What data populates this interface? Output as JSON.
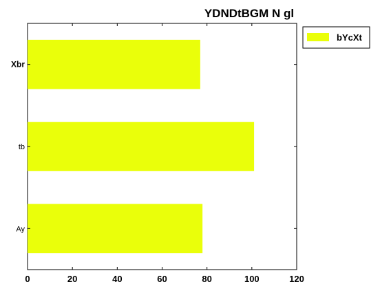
{
  "chart_data": {
    "type": "bar",
    "orientation": "horizontal",
    "title": "YDNDtBGM N gl",
    "categories": [
      "Xbr",
      "tb",
      "Ay"
    ],
    "series": [
      {
        "name": "bYcXt",
        "values": [
          77,
          101,
          78
        ],
        "color": "#eaff0a"
      }
    ],
    "xlim": [
      0,
      120
    ],
    "x_ticks": [
      "0",
      "20",
      "40",
      "60",
      "80",
      "100",
      "120"
    ],
    "xlabel": "",
    "ylabel": "",
    "grid": false,
    "legend_position": "outside-top-right"
  }
}
